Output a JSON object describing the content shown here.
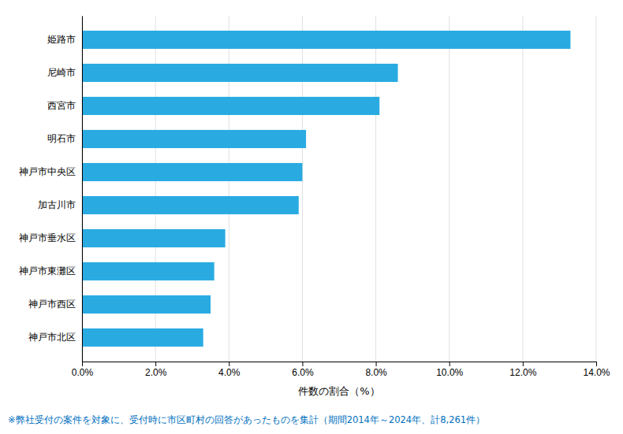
{
  "chart_data": {
    "type": "bar",
    "orientation": "horizontal",
    "categories": [
      "姫路市",
      "尼崎市",
      "西宮市",
      "明石市",
      "神戸市中央区",
      "加古川市",
      "神戸市垂水区",
      "神戸市東灘区",
      "神戸市西区",
      "神戸市北区"
    ],
    "values": [
      13.3,
      8.6,
      8.1,
      6.1,
      6.0,
      5.9,
      3.9,
      3.6,
      3.5,
      3.3
    ],
    "color": "#29ABE2",
    "xlabel": "件数の割合（%）",
    "xlim": [
      0,
      14.0
    ],
    "xticks": [
      {
        "value": 0,
        "label": "0.0%"
      },
      {
        "value": 2.0,
        "label": "2.0%"
      },
      {
        "value": 4.0,
        "label": "4.0%"
      },
      {
        "value": 6.0,
        "label": "6.0%"
      },
      {
        "value": 8.0,
        "label": "8.0%"
      },
      {
        "value": 10.0,
        "label": "10.0%"
      },
      {
        "value": 12.0,
        "label": "12.0%"
      },
      {
        "value": 14.0,
        "label": "14.0%"
      }
    ],
    "grid": true,
    "annotations": [
      "※弊社受付の案件を対象に、受付時に市区町村の回答があったものを集計（期間2014年～2024年、計8,261件）"
    ]
  }
}
